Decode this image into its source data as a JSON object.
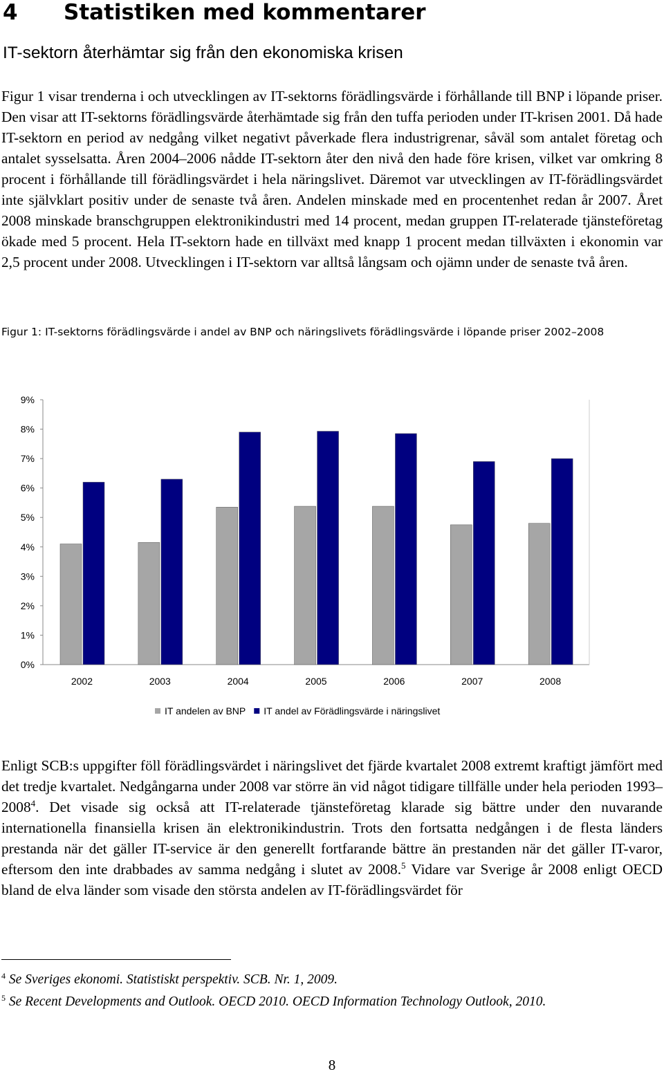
{
  "heading": {
    "number": "4",
    "title": "Statistiken med kommentarer"
  },
  "subheading": "IT-sektorn återhämtar sig från den ekonomiska krisen",
  "paragraph1": "Figur 1 visar trenderna i och utvecklingen av IT-sektorns förädlingsvärde i förhållande till BNP i löpande priser. Den visar att IT-sektorns förädlingsvärde återhämtade sig från den tuffa perioden under IT-krisen 2001. Då hade IT-sektorn en period av nedgång vilket negativt påverkade flera industrigrenar, såväl som antalet företag och antalet sysselsatta. Åren 2004–2006 nådde IT-sektorn åter den nivå den hade före krisen, vilket var omkring 8 procent i förhållande till förädlingsvärdet i hela näringslivet. Däremot var utvecklingen av IT-förädlingsvärdet inte självklart positiv under de senaste två åren. Andelen minskade med en procentenhet redan år 2007. Året 2008 minskade branschgruppen elektronikindustri med 14 procent, medan gruppen IT-relaterade tjänsteföretag ökade med 5 procent. Hela IT-sektorn hade en tillväxt med knapp 1 procent medan tillväxten i ekonomin var 2,5 procent under 2008. Utvecklingen i IT-sektorn var alltså långsam och ojämn under de senaste två åren.",
  "figure_caption": "Figur 1: IT-sektorns förädlingsvärde i andel av BNP och näringslivets förädlingsvärde i löpande priser 2002–2008",
  "chart_data": {
    "type": "bar",
    "categories": [
      "2002",
      "2003",
      "2004",
      "2005",
      "2006",
      "2007",
      "2008"
    ],
    "series": [
      {
        "name": "IT andelen av BNP",
        "color": "#a6a6a6",
        "values": [
          4.1,
          4.15,
          5.35,
          5.38,
          5.38,
          4.75,
          4.8
        ]
      },
      {
        "name": "IT andel av Förädlingsvärde i näringslivet",
        "color": "#000080",
        "values": [
          6.2,
          6.3,
          7.9,
          7.93,
          7.85,
          6.9,
          7.0
        ]
      }
    ],
    "yticks": [
      "0%",
      "1%",
      "2%",
      "3%",
      "4%",
      "5%",
      "6%",
      "7%",
      "8%",
      "9%"
    ],
    "ylim": [
      0,
      9
    ],
    "legend_position": "bottom",
    "grid": false
  },
  "paragraph2": {
    "part1": "Enligt SCB:s uppgifter föll förädlingsvärdet i näringslivet det fjärde kvartalet 2008 extremt kraftigt jämfört med det tredje kvartalet. Nedgångarna under 2008 var större än vid något tidigare tillfälle under hela perioden 1993–2008",
    "ref1": "4",
    "part2": ". Det visade sig också att IT-relaterade tjänsteföretag klarade sig bättre under den nuvarande internationella finansiella krisen än elektronikindustrin. Trots den fortsatta nedgången i de flesta länders prestanda när det gäller IT-service är den generellt fortfarande bättre än prestanden när det gäller IT-varor, eftersom den inte drabbades av samma nedgång i slutet av 2008.",
    "ref2": "5",
    "part3": " Vidare var Sverige år 2008 enligt OECD bland de elva länder som visade den största andelen av IT-förädlingsvärdet för"
  },
  "footnotes": [
    {
      "number": "4",
      "text": " Se Sveriges ekonomi. Statistiskt perspektiv. SCB. Nr. 1, 2009."
    },
    {
      "number": "5",
      "text": " Se Recent Developments and Outlook. OECD 2010. OECD Information Technology Outlook, 2010."
    }
  ],
  "page_number": "8"
}
